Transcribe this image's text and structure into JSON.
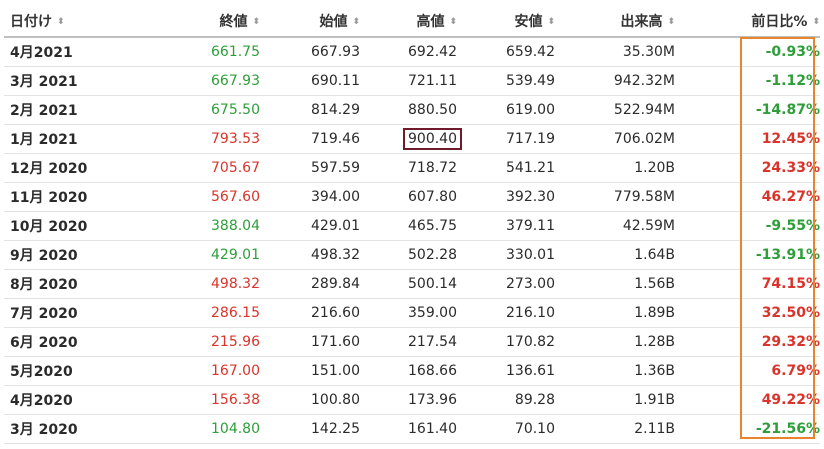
{
  "table": {
    "headers": [
      {
        "key": "date",
        "label": "日付け"
      },
      {
        "key": "close",
        "label": "終値"
      },
      {
        "key": "open",
        "label": "始値"
      },
      {
        "key": "high",
        "label": "高値"
      },
      {
        "key": "low",
        "label": "安値"
      },
      {
        "key": "volume",
        "label": "出来高"
      },
      {
        "key": "change",
        "label": "前日比%"
      }
    ],
    "sort_glyph": "⬍",
    "rows": [
      {
        "date": "4月2021",
        "close": "661.75",
        "open": "667.93",
        "high": "692.42",
        "low": "659.42",
        "volume": "35.30M",
        "change": "-0.93%",
        "trend": "neg"
      },
      {
        "date": "3月 2021",
        "close": "667.93",
        "open": "690.11",
        "high": "721.11",
        "low": "539.49",
        "volume": "942.32M",
        "change": "-1.12%",
        "trend": "neg"
      },
      {
        "date": "2月 2021",
        "close": "675.50",
        "open": "814.29",
        "high": "880.50",
        "low": "619.00",
        "volume": "522.94M",
        "change": "-14.87%",
        "trend": "neg"
      },
      {
        "date": "1月 2021",
        "close": "793.53",
        "open": "719.46",
        "high": "900.40",
        "low": "717.19",
        "volume": "706.02M",
        "change": "12.45%",
        "trend": "pos",
        "highlight_high": true
      },
      {
        "date": "12月 2020",
        "close": "705.67",
        "open": "597.59",
        "high": "718.72",
        "low": "541.21",
        "volume": "1.20B",
        "change": "24.33%",
        "trend": "pos"
      },
      {
        "date": "11月 2020",
        "close": "567.60",
        "open": "394.00",
        "high": "607.80",
        "low": "392.30",
        "volume": "779.58M",
        "change": "46.27%",
        "trend": "pos"
      },
      {
        "date": "10月 2020",
        "close": "388.04",
        "open": "429.01",
        "high": "465.75",
        "low": "379.11",
        "volume": "42.59M",
        "change": "-9.55%",
        "trend": "neg"
      },
      {
        "date": "9月 2020",
        "close": "429.01",
        "open": "498.32",
        "high": "502.28",
        "low": "330.01",
        "volume": "1.64B",
        "change": "-13.91%",
        "trend": "neg"
      },
      {
        "date": "8月 2020",
        "close": "498.32",
        "open": "289.84",
        "high": "500.14",
        "low": "273.00",
        "volume": "1.56B",
        "change": "74.15%",
        "trend": "pos"
      },
      {
        "date": "7月 2020",
        "close": "286.15",
        "open": "216.60",
        "high": "359.00",
        "low": "216.10",
        "volume": "1.89B",
        "change": "32.50%",
        "trend": "pos"
      },
      {
        "date": "6月 2020",
        "close": "215.96",
        "open": "171.60",
        "high": "217.54",
        "low": "170.82",
        "volume": "1.28B",
        "change": "29.32%",
        "trend": "pos"
      },
      {
        "date": "5月2020",
        "close": "167.00",
        "open": "151.00",
        "high": "168.66",
        "low": "136.61",
        "volume": "1.36B",
        "change": "6.79%",
        "trend": "pos"
      },
      {
        "date": "4月2020",
        "close": "156.38",
        "open": "100.80",
        "high": "173.96",
        "low": "89.28",
        "volume": "1.91B",
        "change": "49.22%",
        "trend": "pos"
      },
      {
        "date": "3月 2020",
        "close": "104.80",
        "open": "142.25",
        "high": "161.40",
        "low": "70.10",
        "volume": "2.11B",
        "change": "-21.56%",
        "trend": "neg"
      }
    ]
  },
  "colors": {
    "positive": "#d9342b",
    "negative": "#2e9e3a",
    "highlight_box": "#6e1b2b",
    "column_box": "#e8832e"
  }
}
